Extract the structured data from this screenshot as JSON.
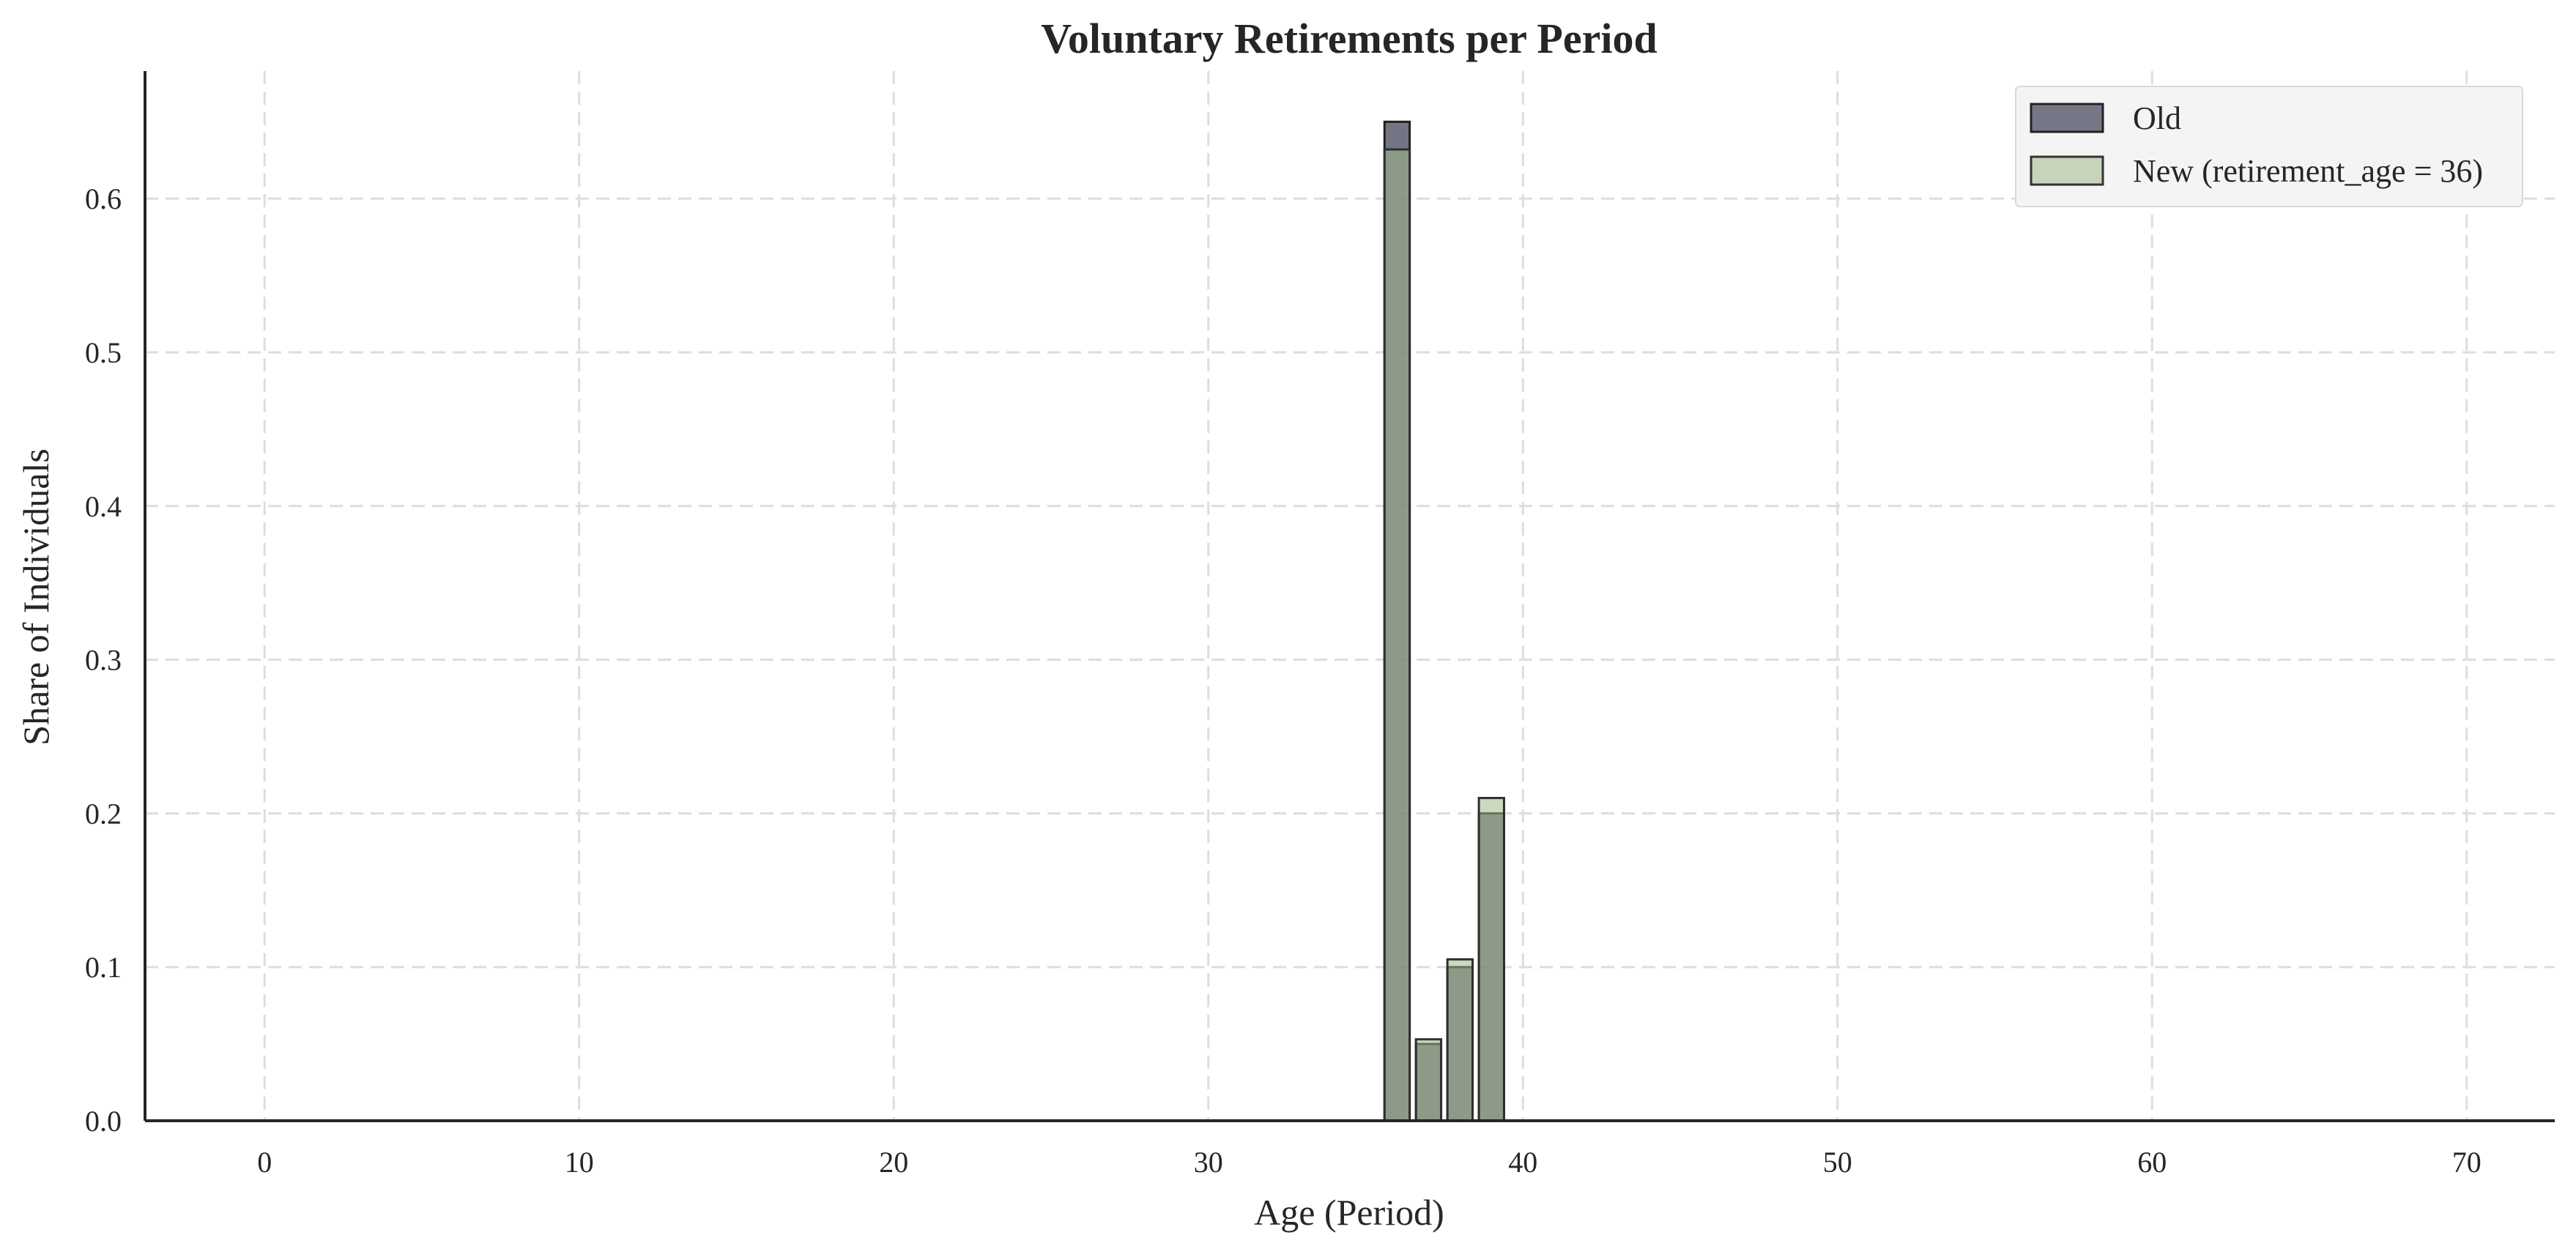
{
  "chart_data": {
    "type": "bar",
    "title": "Voluntary Retirements per Period",
    "xlabel": "Age (Period)",
    "ylabel": "Share of Individuals",
    "xlim": [
      -3.8,
      72.8
    ],
    "ylim": [
      0,
      0.683
    ],
    "xticks": [
      0,
      10,
      20,
      30,
      40,
      50,
      60,
      70
    ],
    "yticks": [
      0.0,
      0.1,
      0.2,
      0.3,
      0.4,
      0.5,
      0.6
    ],
    "grid": true,
    "legend_position": "top-right",
    "series": [
      {
        "name": "Old",
        "color": "#4b4e62",
        "x": [
          36,
          37,
          38,
          39
        ],
        "values": [
          0.65,
          0.05,
          0.1,
          0.2
        ]
      },
      {
        "name": "New (retirement_age = 36)",
        "color": "#a3b88c",
        "x": [
          36,
          37,
          38,
          39
        ],
        "values": [
          0.632,
          0.053,
          0.105,
          0.21
        ]
      }
    ]
  }
}
